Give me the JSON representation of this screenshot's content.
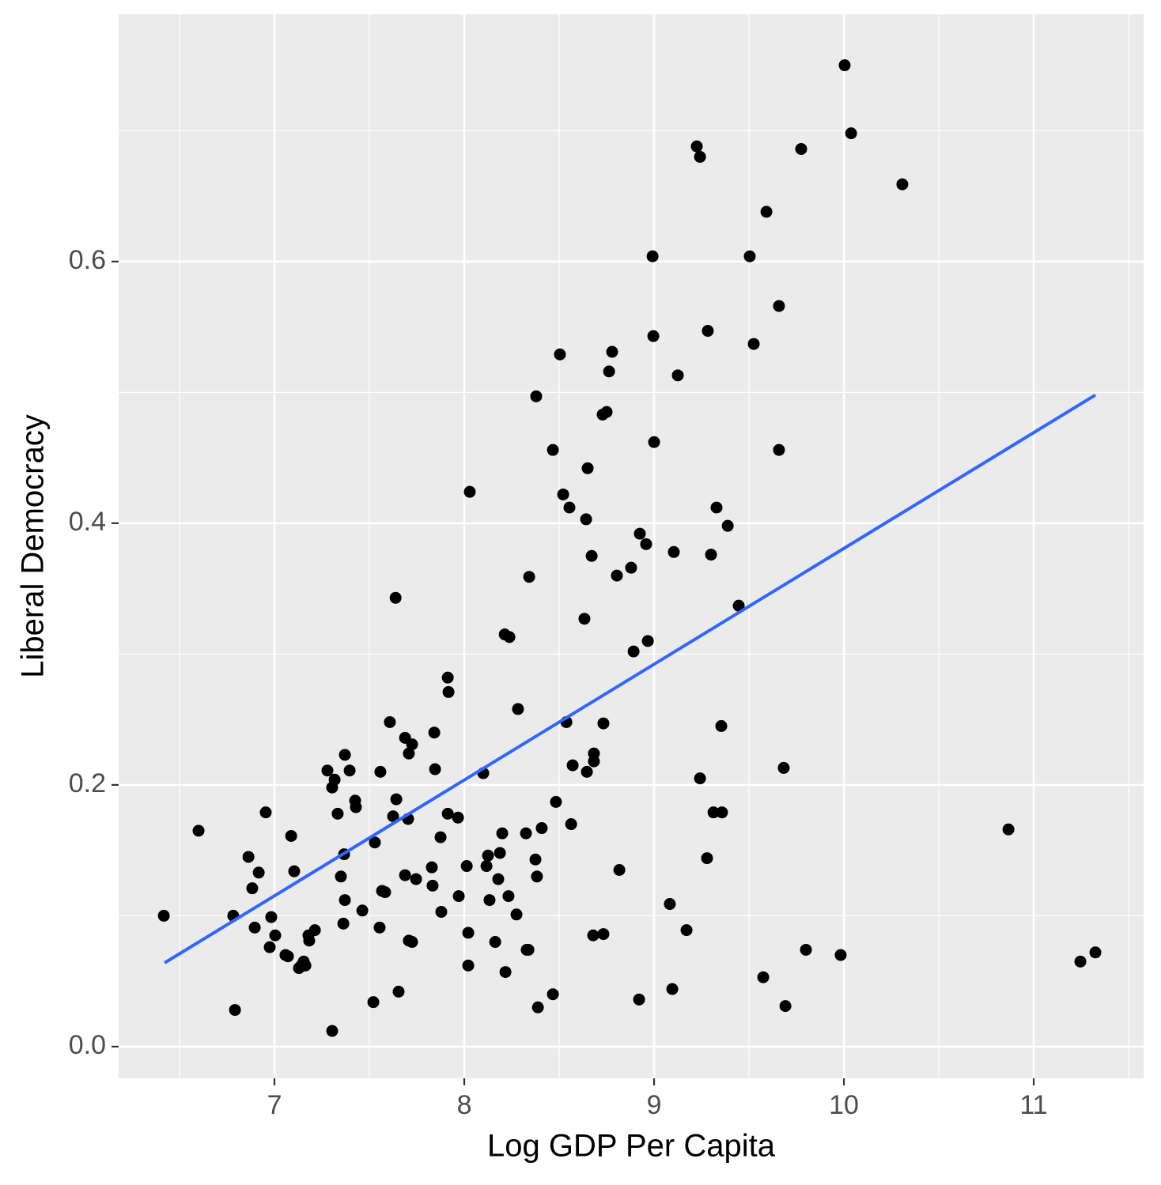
{
  "chart_data": {
    "type": "scatter",
    "xlabel": "Log GDP Per Capita",
    "ylabel": "Liberal Democracy",
    "color": "#000000",
    "x": [
      10.004,
      10.038,
      9.225,
      9.242,
      9.775,
      10.308,
      9.592,
      8.992,
      9.504,
      9.658,
      9.283,
      8.996,
      9.525,
      8.504,
      8.779,
      8.763,
      9.125,
      8.379,
      8.75,
      8.729,
      9.0,
      8.467,
      9.658,
      8.65,
      8.029,
      8.521,
      8.554,
      9.329,
      8.642,
      9.388,
      8.925,
      8.958,
      9.104,
      8.671,
      9.3,
      8.879,
      8.804,
      8.342,
      7.638,
      9.446,
      8.633,
      8.213,
      8.238,
      8.967,
      8.892,
      7.913,
      7.917,
      8.283,
      7.608,
      8.538,
      8.733,
      9.354,
      7.842,
      7.688,
      7.725,
      7.708,
      7.371,
      8.683,
      8.683,
      8.571,
      8.646,
      9.683,
      7.279,
      7.396,
      7.846,
      7.558,
      8.1,
      7.317,
      9.242,
      7.304,
      7.425,
      7.429,
      7.642,
      8.483,
      6.954,
      7.333,
      7.625,
      7.704,
      7.913,
      7.967,
      9.313,
      9.358,
      8.563,
      8.408,
      6.6,
      10.867,
      7.088,
      8.2,
      8.325,
      7.875,
      7.529,
      7.367,
      8.188,
      6.863,
      8.125,
      8.375,
      8.117,
      8.013,
      9.279,
      7.829,
      8.817,
      7.104,
      6.917,
      7.688,
      8.383,
      7.35,
      7.746,
      8.179,
      7.833,
      6.883,
      7.567,
      7.583,
      8.233,
      7.971,
      8.133,
      7.371,
      9.083,
      7.463,
      7.879,
      8.275,
      6.417,
      6.783,
      6.983,
      7.363,
      6.896,
      7.554,
      7.213,
      9.171,
      8.021,
      8.733,
      8.679,
      7.004,
      7.179,
      7.183,
      7.708,
      7.725,
      8.163,
      6.975,
      8.329,
      8.338,
      9.8,
      11.325,
      7.058,
      7.071,
      9.983,
      7.154,
      11.246,
      8.021,
      7.142,
      7.129,
      7.163,
      8.217,
      9.575,
      9.096,
      7.654,
      8.467,
      7.521,
      8.921,
      9.692,
      8.388,
      6.792,
      7.304
    ],
    "values": [
      0.75,
      0.698,
      0.688,
      0.68,
      0.686,
      0.659,
      0.638,
      0.604,
      0.604,
      0.566,
      0.547,
      0.543,
      0.537,
      0.529,
      0.531,
      0.516,
      0.513,
      0.497,
      0.485,
      0.483,
      0.462,
      0.456,
      0.456,
      0.442,
      0.424,
      0.422,
      0.412,
      0.412,
      0.403,
      0.398,
      0.392,
      0.384,
      0.378,
      0.375,
      0.376,
      0.366,
      0.36,
      0.359,
      0.343,
      0.337,
      0.327,
      0.315,
      0.313,
      0.31,
      0.302,
      0.282,
      0.271,
      0.258,
      0.248,
      0.248,
      0.247,
      0.245,
      0.24,
      0.236,
      0.231,
      0.224,
      0.223,
      0.224,
      0.218,
      0.215,
      0.21,
      0.213,
      0.211,
      0.211,
      0.212,
      0.21,
      0.209,
      0.204,
      0.205,
      0.198,
      0.188,
      0.183,
      0.189,
      0.187,
      0.179,
      0.178,
      0.176,
      0.174,
      0.178,
      0.175,
      0.179,
      0.179,
      0.17,
      0.167,
      0.165,
      0.166,
      0.161,
      0.163,
      0.163,
      0.16,
      0.156,
      0.147,
      0.148,
      0.145,
      0.146,
      0.143,
      0.138,
      0.138,
      0.144,
      0.137,
      0.135,
      0.134,
      0.133,
      0.131,
      0.13,
      0.13,
      0.128,
      0.128,
      0.123,
      0.121,
      0.119,
      0.118,
      0.115,
      0.115,
      0.112,
      0.112,
      0.109,
      0.104,
      0.103,
      0.101,
      0.1,
      0.1,
      0.099,
      0.094,
      0.091,
      0.091,
      0.089,
      0.089,
      0.087,
      0.086,
      0.085,
      0.085,
      0.085,
      0.081,
      0.081,
      0.08,
      0.08,
      0.076,
      0.074,
      0.074,
      0.074,
      0.072,
      0.07,
      0.069,
      0.07,
      0.065,
      0.065,
      0.062,
      0.062,
      0.06,
      0.062,
      0.057,
      0.053,
      0.044,
      0.042,
      0.04,
      0.034,
      0.036,
      0.031,
      0.03,
      0.028,
      0.012
    ],
    "fit": {
      "x": [
        6.421,
        11.325
      ],
      "values": [
        0.064,
        0.498
      ],
      "color": "#3366ff"
    },
    "xlim": [
      6.179,
      11.579
    ],
    "xticks": [
      7,
      8,
      9,
      10,
      11
    ],
    "ylim": [
      -0.0242,
      0.789
    ],
    "yticks": [
      {
        "value": 0,
        "label": "0.0"
      },
      0.2,
      0.4,
      0.6
    ],
    "grid": true
  }
}
